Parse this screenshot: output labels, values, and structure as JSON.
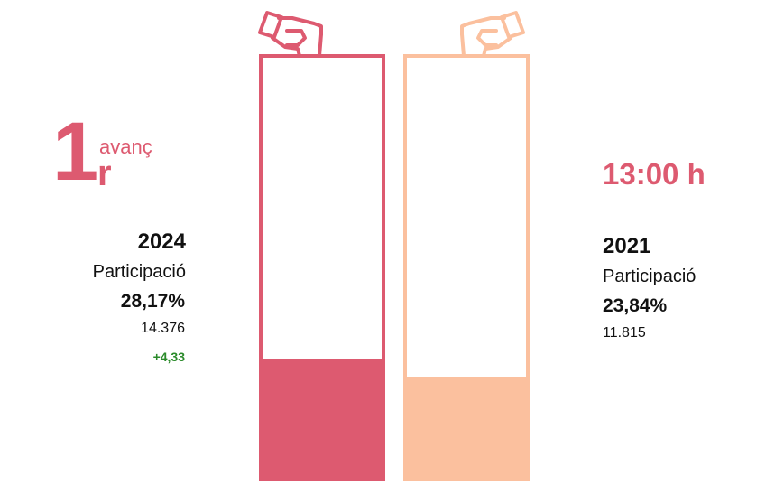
{
  "advance": {
    "number": "1",
    "suffix": "r",
    "word": "avanç"
  },
  "time": "13:00 h",
  "colors": {
    "current": "#dd5a70",
    "previous": "#fbc09e",
    "positive": "#2a8a2a"
  },
  "chart_data": {
    "type": "bar",
    "categories": [
      "2024",
      "2021"
    ],
    "series": [
      {
        "name": "Participació",
        "values": [
          28.17,
          23.84
        ]
      }
    ],
    "ylim": [
      0,
      100
    ],
    "bars": [
      {
        "year": "2024",
        "label": "Participació",
        "pct_text": "28,17%",
        "value": 28.17,
        "count": "14.376",
        "diff": "+4,33"
      },
      {
        "year": "2021",
        "label": "Participació",
        "pct_text": "23,84%",
        "value": 23.84,
        "count": "11.815"
      }
    ]
  }
}
